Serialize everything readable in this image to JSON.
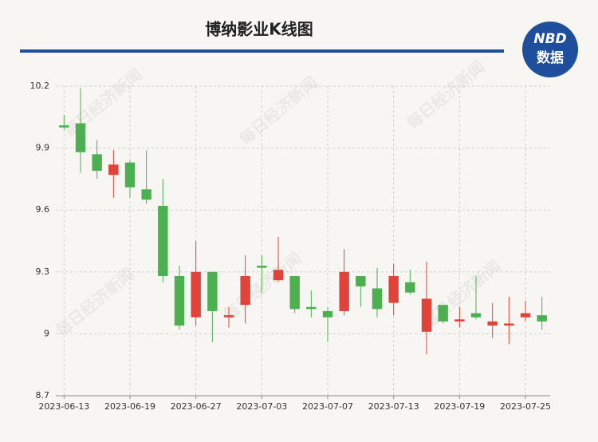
{
  "chart_data": {
    "type": "candlestick",
    "title": "博纳影业K线图",
    "logo": {
      "top": "NBD",
      "bottom": "数据"
    },
    "watermark": "每日经济新闻",
    "categories": [
      "2023-06-13",
      null,
      null,
      null,
      "2023-06-19",
      null,
      null,
      null,
      "2023-06-27",
      null,
      null,
      null,
      "2023-07-03",
      null,
      null,
      null,
      "2023-07-07",
      null,
      null,
      null,
      "2023-07-13",
      null,
      null,
      null,
      "2023-07-19",
      null,
      null,
      null,
      "2023-07-25",
      null
    ],
    "open": [
      10.01,
      10.02,
      9.87,
      9.77,
      9.83,
      9.7,
      9.62,
      9.28,
      9.08,
      9.3,
      9.08,
      9.14,
      9.33,
      9.26,
      9.28,
      9.13,
      9.11,
      9.11,
      9.28,
      9.22,
      9.15,
      9.25,
      9.01,
      9.14,
      9.06,
      9.1,
      9.04,
      9.04,
      9.08,
      9.09
    ],
    "high": [
      10.06,
      10.19,
      9.94,
      9.89,
      9.84,
      9.89,
      9.75,
      9.33,
      9.45,
      9.3,
      9.13,
      9.38,
      9.38,
      9.47,
      9.28,
      9.21,
      9.13,
      9.41,
      9.28,
      9.32,
      9.34,
      9.31,
      9.35,
      9.14,
      9.13,
      9.28,
      9.15,
      9.18,
      9.16,
      9.18
    ],
    "low": [
      9.99,
      9.78,
      9.75,
      9.66,
      9.66,
      9.63,
      9.25,
      9.02,
      9.04,
      8.96,
      9.03,
      9.05,
      9.2,
      9.25,
      9.1,
      9.08,
      8.96,
      9.09,
      9.13,
      9.08,
      9.09,
      9.19,
      8.9,
      9.05,
      9.03,
      9.07,
      8.98,
      8.95,
      9.06,
      9.02
    ],
    "close": [
      10.0,
      9.88,
      9.79,
      9.82,
      9.71,
      9.65,
      9.28,
      9.04,
      9.3,
      9.11,
      9.09,
      9.28,
      9.32,
      9.31,
      9.12,
      9.12,
      9.08,
      9.3,
      9.23,
      9.12,
      9.28,
      9.2,
      9.17,
      9.06,
      9.07,
      9.08,
      9.06,
      9.05,
      9.1,
      9.06
    ],
    "up_color": "#e0433a",
    "down_color": "#4caf50",
    "ylim": [
      8.7,
      10.2
    ],
    "yticks": [
      8.7,
      9,
      9.3,
      9.6,
      9.9,
      10.2
    ],
    "grid": true
  }
}
